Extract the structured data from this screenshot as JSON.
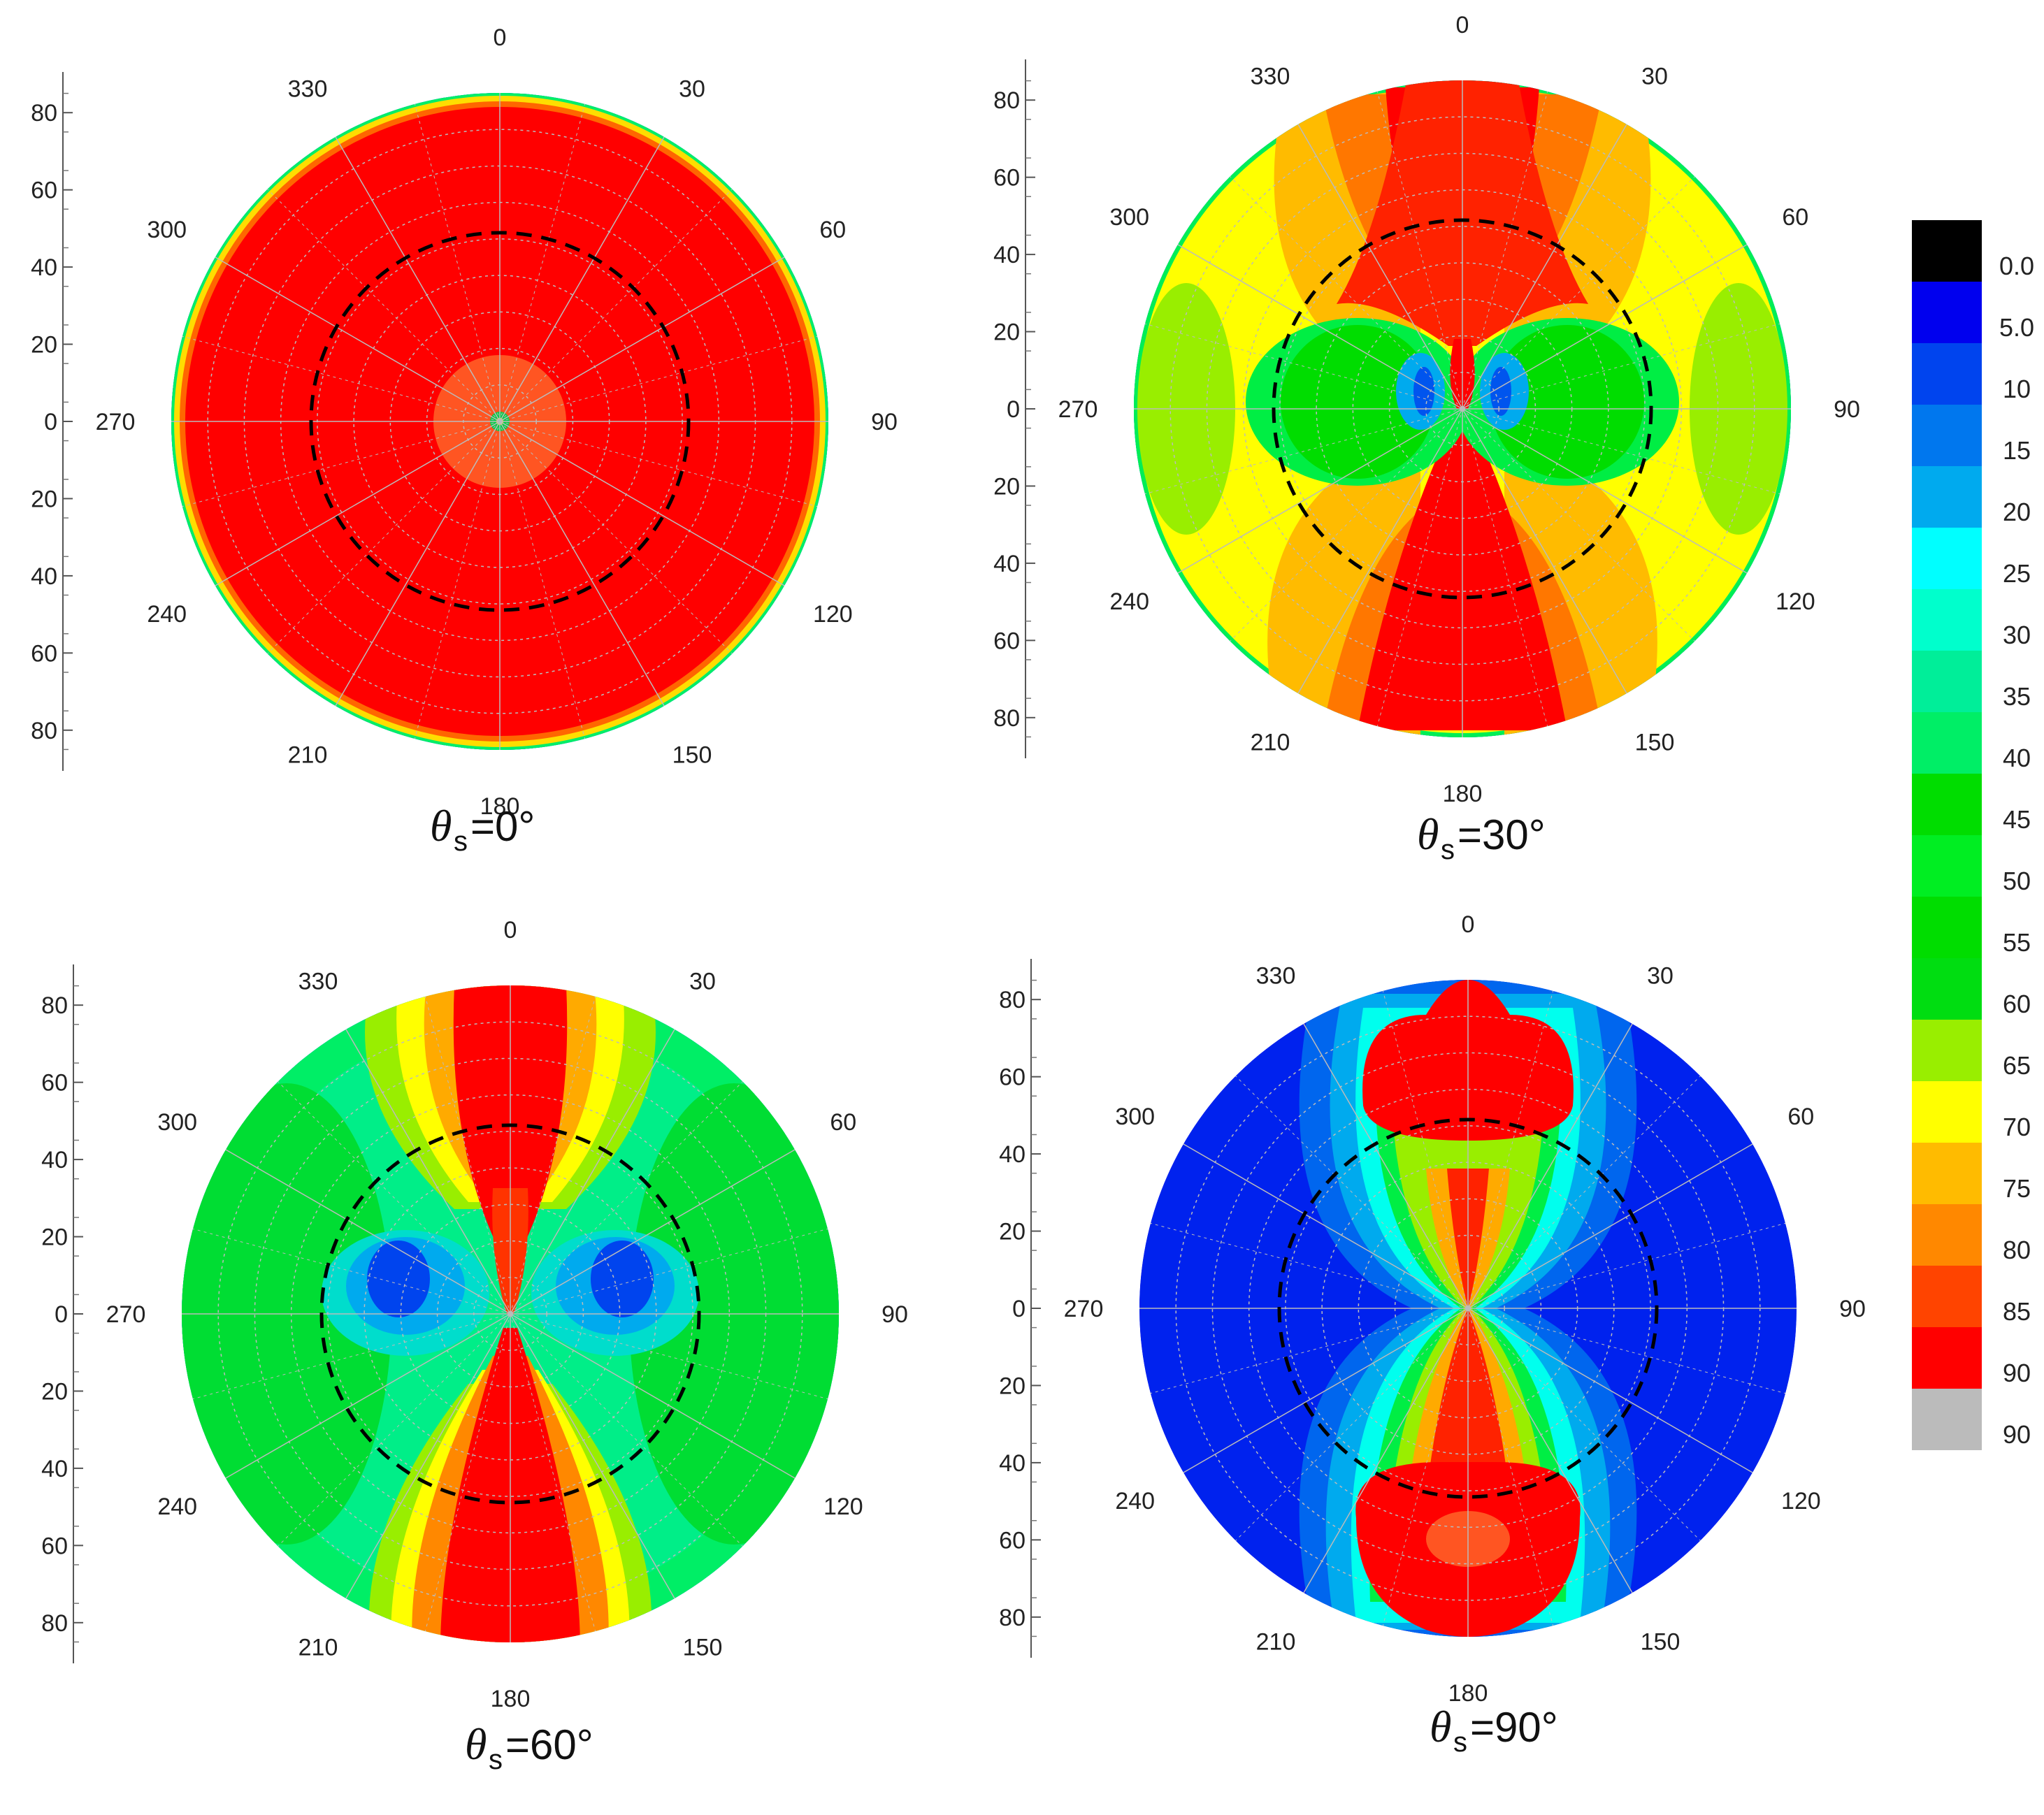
{
  "chart_data": [
    {
      "type": "polar-contour",
      "caption": {
        "symbol": "θ",
        "subscript": "s",
        "value": "=0°"
      },
      "angular_ticks": [
        "0",
        "30",
        "60",
        "90",
        "120",
        "150",
        "180",
        "210",
        "240",
        "270",
        "300",
        "330"
      ],
      "radial_ticks": [
        "80",
        "60",
        "40",
        "20",
        "0",
        "20",
        "40",
        "60",
        "80"
      ],
      "rlim": [
        0,
        90
      ],
      "reference_circle_radius": 48,
      "pattern": "uniform-red",
      "colors": {
        "outer": "#0000ee",
        "main": "#ff0000"
      }
    },
    {
      "type": "polar-contour",
      "caption": {
        "symbol": "θ",
        "subscript": "s",
        "value": "=30°"
      },
      "angular_ticks": [
        "0",
        "30",
        "60",
        "90",
        "120",
        "150",
        "180",
        "210",
        "240",
        "270",
        "300",
        "330"
      ],
      "radial_ticks": [
        "80",
        "60",
        "40",
        "20",
        "0",
        "20",
        "40",
        "60",
        "80"
      ],
      "rlim": [
        0,
        90
      ],
      "reference_circle_radius": 48,
      "pattern": "yellow-with-red-lobes",
      "colors": {
        "outer": "#0000ee",
        "main": "#ffff00"
      }
    },
    {
      "type": "polar-contour",
      "caption": {
        "symbol": "θ",
        "subscript": "s",
        "value": "=60°"
      },
      "angular_ticks": [
        "0",
        "30",
        "60",
        "90",
        "120",
        "150",
        "180",
        "210",
        "240",
        "270",
        "300",
        "330"
      ],
      "radial_ticks": [
        "80",
        "60",
        "40",
        "20",
        "0",
        "20",
        "40",
        "60",
        "80"
      ],
      "rlim": [
        0,
        90
      ],
      "reference_circle_radius": 48,
      "pattern": "green-with-red-lobes",
      "colors": {
        "outer": "#0000ee",
        "main": "#00dd33"
      }
    },
    {
      "type": "polar-contour",
      "caption": {
        "symbol": "θ",
        "subscript": "s",
        "value": "=90°"
      },
      "angular_ticks": [
        "0",
        "30",
        "60",
        "90",
        "120",
        "150",
        "180",
        "210",
        "240",
        "270",
        "300",
        "330"
      ],
      "radial_ticks": [
        "80",
        "60",
        "40",
        "20",
        "0",
        "20",
        "40",
        "60",
        "80"
      ],
      "rlim": [
        0,
        90
      ],
      "reference_circle_radius": 48,
      "pattern": "blue-with-red-lobes",
      "colors": {
        "outer": "#0000ee",
        "main": "#0022ee"
      }
    }
  ],
  "colorbar": {
    "labels": [
      "0.0",
      "5.0",
      "10",
      "15",
      "20",
      "25",
      "30",
      "35",
      "40",
      "45",
      "50",
      "55",
      "60",
      "65",
      "70",
      "75",
      "80",
      "85",
      "90",
      "90"
    ],
    "colors": [
      "#000000",
      "#0000ee",
      "#0044ee",
      "#0077ee",
      "#00aaee",
      "#00ffff",
      "#00ffcc",
      "#00ee99",
      "#00ee66",
      "#00dd00",
      "#00ee22",
      "#00dd00",
      "#00dd11",
      "#99ee00",
      "#ffff00",
      "#ffbb00",
      "#ff8800",
      "#ff4400",
      "#ff0000",
      "#bbbbbb"
    ]
  }
}
